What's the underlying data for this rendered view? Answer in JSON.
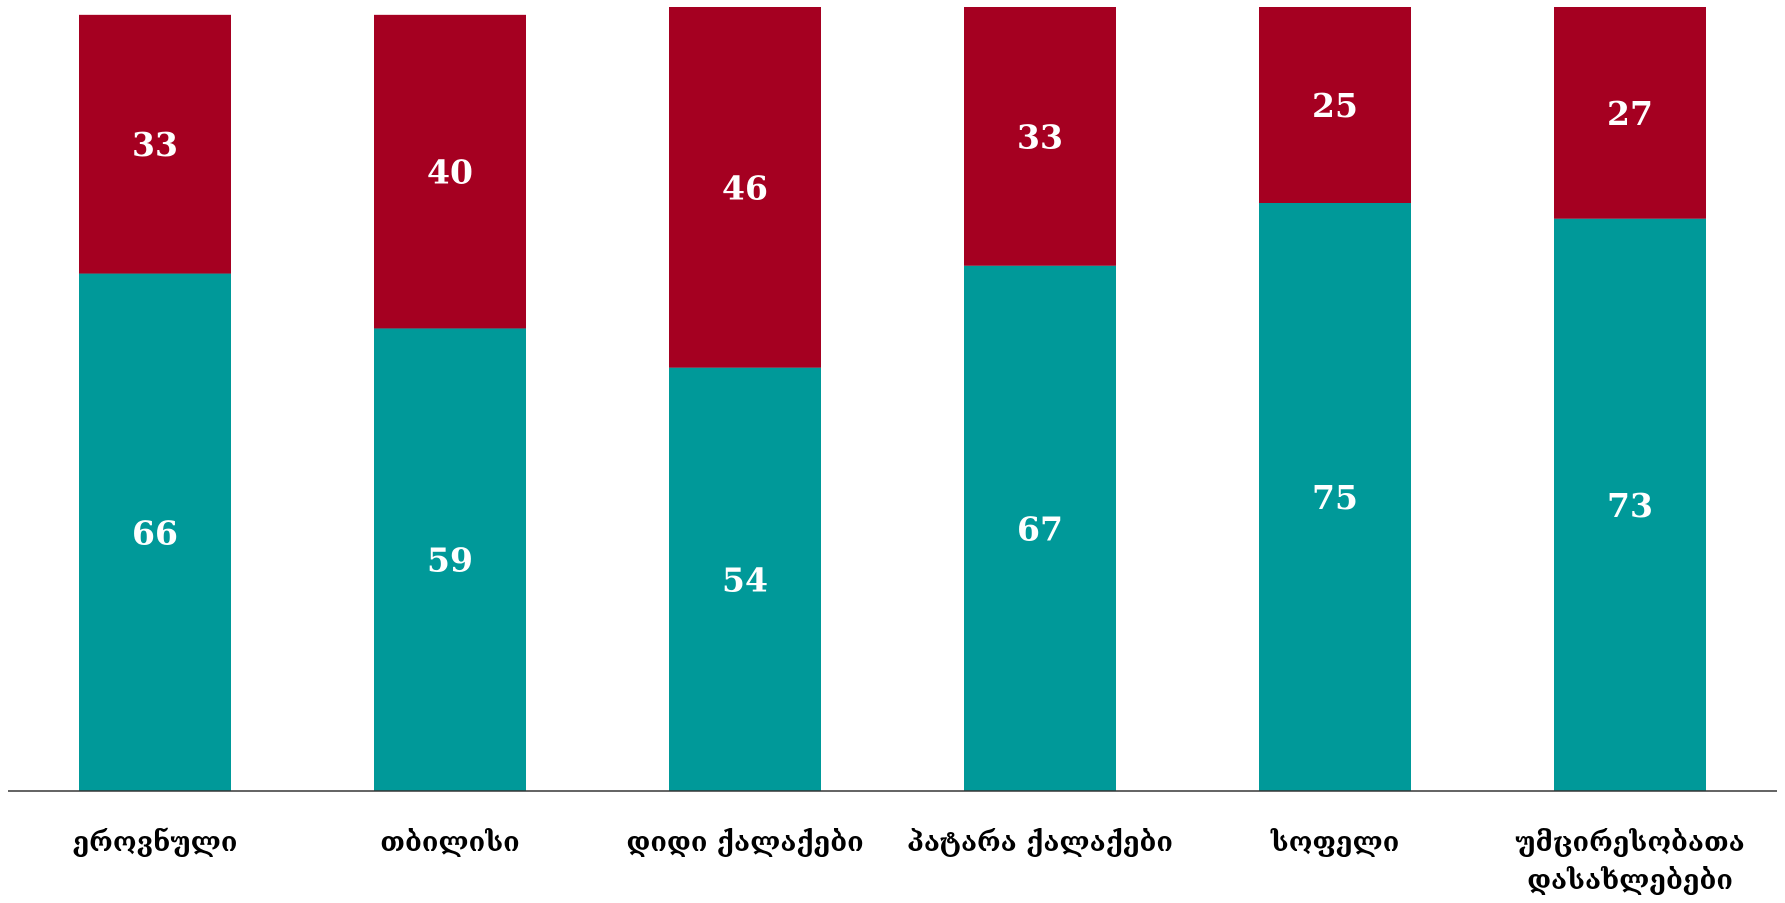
{
  "chart_data": {
    "type": "bar",
    "stacked": true,
    "categories": [
      [
        "ეროვნული"
      ],
      [
        "თბილისი"
      ],
      [
        "დიდი ქალაქები"
      ],
      [
        "პატარა ქალაქები"
      ],
      [
        "სოფელი"
      ],
      [
        "უმცირესობათა",
        "დასახლებები"
      ]
    ],
    "series": [
      {
        "values": [
          66,
          59,
          54,
          67,
          75,
          73
        ],
        "color": "#009999"
      },
      {
        "values": [
          33,
          40,
          46,
          33,
          25,
          27
        ],
        "color": "#a50021"
      }
    ],
    "ylim": [
      0,
      100
    ],
    "grid": false,
    "legend": "none",
    "title": "",
    "xlabel": "",
    "ylabel": ""
  }
}
